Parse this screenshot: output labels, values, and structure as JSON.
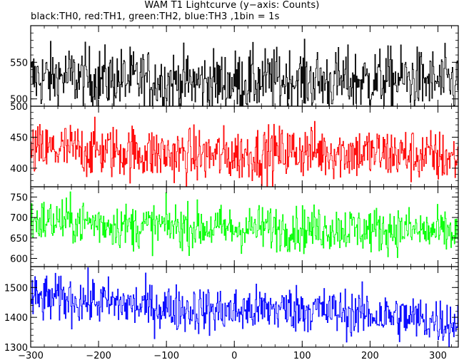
{
  "title": "WAM T1 Lightcurve (y−axis: Counts)",
  "subtitle": "black:TH0, red:TH1, green:TH2, blue:TH3 ,1bin = 1s",
  "chart_data": {
    "type": "line",
    "x_range": [
      -300,
      330
    ],
    "x_ticks": [
      -300,
      -200,
      -100,
      0,
      100,
      200,
      300
    ],
    "x_tick_labels": [
      "−300",
      "−200",
      "−100",
      "0",
      "100",
      "200",
      "300"
    ],
    "panels": [
      {
        "series_label": "TH0",
        "color": "#000000",
        "ylim": [
          490,
          600
        ],
        "y_ticks": [
          500,
          550
        ],
        "y_tick_labels": [
          "500",
          "550"
        ],
        "mean": 525,
        "noise": 22,
        "trend": [
          [
            -300,
            525
          ],
          [
            330,
            525
          ]
        ],
        "x": [
          -300,
          -250,
          -200,
          -150,
          -100,
          -50,
          0,
          50,
          100,
          150,
          200,
          250,
          300,
          330
        ],
        "y": [
          528,
          530,
          527,
          526,
          524,
          522,
          523,
          525,
          526,
          524,
          525,
          527,
          523,
          522
        ]
      },
      {
        "series_label": "TH1",
        "color": "#ff0000",
        "ylim": [
          370,
          500
        ],
        "y_ticks": [
          400,
          450,
          500
        ],
        "y_tick_labels": [
          "400",
          "450",
          "500"
        ],
        "mean": 425,
        "noise": 22,
        "x": [
          -300,
          -250,
          -200,
          -150,
          -100,
          -50,
          0,
          50,
          100,
          150,
          200,
          250,
          300,
          330
        ],
        "y": [
          427,
          430,
          428,
          426,
          422,
          420,
          421,
          424,
          428,
          426,
          424,
          422,
          418,
          416
        ]
      },
      {
        "series_label": "TH2",
        "color": "#00ff00",
        "ylim": [
          580,
          775
        ],
        "y_ticks": [
          600,
          650,
          700,
          750
        ],
        "y_tick_labels": [
          "600",
          "650",
          "700",
          "750"
        ],
        "mean": 675,
        "noise": 28,
        "x": [
          -300,
          -250,
          -200,
          -150,
          -100,
          -50,
          0,
          50,
          100,
          150,
          200,
          250,
          300,
          330
        ],
        "y": [
          690,
          692,
          686,
          678,
          680,
          676,
          672,
          676,
          672,
          674,
          670,
          670,
          664,
          662
        ]
      },
      {
        "series_label": "TH3",
        "color": "#0000ff",
        "ylim": [
          1300,
          1570
        ],
        "y_ticks": [
          1300,
          1400,
          1500
        ],
        "y_tick_labels": [
          "1300",
          "1400",
          "1500"
        ],
        "mean": 1430,
        "noise": 40,
        "x": [
          -300,
          -250,
          -200,
          -150,
          -100,
          -50,
          0,
          50,
          100,
          150,
          200,
          250,
          300,
          330
        ],
        "y": [
          1460,
          1462,
          1452,
          1440,
          1432,
          1425,
          1420,
          1428,
          1430,
          1418,
          1410,
          1400,
          1388,
          1380
        ]
      }
    ]
  }
}
